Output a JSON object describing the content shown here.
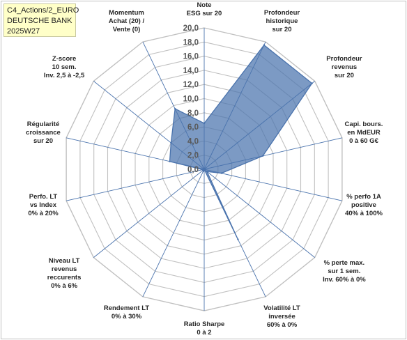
{
  "header": {
    "line1": "C4_Actions/2_EURO",
    "line2": "DEUTSCHE BANK",
    "line3": "2025W27"
  },
  "chart_data": {
    "type": "radar",
    "title": "",
    "rmin": 0,
    "rmax": 20,
    "tick_step": 2,
    "tick_labels": [
      "0,0",
      "2,0",
      "4,0",
      "6,0",
      "8,0",
      "10,0",
      "12,0",
      "14,0",
      "16,0",
      "18,0",
      "20,0"
    ],
    "axes": [
      {
        "lines": [
          "Note",
          "ESG sur 20"
        ]
      },
      {
        "lines": [
          "Profondeur",
          "historique",
          "sur 20"
        ]
      },
      {
        "lines": [
          "Profondeur",
          "revenus",
          "sur 20"
        ]
      },
      {
        "lines": [
          "Capi. bours.",
          "en MdEUR",
          "0 à 60 G€"
        ]
      },
      {
        "lines": [
          "% perfo 1A",
          "positive",
          "40% à 100%"
        ]
      },
      {
        "lines": [
          "% perte max.",
          "sur 1 sem.",
          "Inv. 60% à 0%"
        ]
      },
      {
        "lines": [
          "Volatilité LT",
          "inversée",
          "60% à 0%"
        ]
      },
      {
        "lines": [
          "Ratio Sharpe",
          "0 à 2"
        ]
      },
      {
        "lines": [
          "Rendement LT",
          "0% à 30%"
        ]
      },
      {
        "lines": [
          "Niveau LT",
          "revenus",
          "reccurents",
          "0% à 6%"
        ]
      },
      {
        "lines": [
          "Perfo. LT",
          "vs Index",
          "0% à 20%"
        ]
      },
      {
        "lines": [
          "Régularité",
          "croissance",
          "sur 20"
        ]
      },
      {
        "lines": [
          "Z-score",
          "10 sem.",
          "Inv. 2,5 à -2,5"
        ]
      },
      {
        "lines": [
          "Momentum",
          "Achat (20) /",
          "Vente (0)"
        ]
      }
    ],
    "series": [
      {
        "values": [
          6.5,
          19.5,
          19.5,
          8.5,
          2.5,
          0.5,
          11.0,
          0.0,
          0.3,
          0.2,
          0.2,
          5.0,
          6.0,
          9.5
        ],
        "color": "#4a73ad",
        "fill": "#4a73ad",
        "fill_opacity": 0.72
      }
    ],
    "grid": true,
    "grid_color": "#c0c0c0",
    "spoke_color": "#4a73ad"
  }
}
